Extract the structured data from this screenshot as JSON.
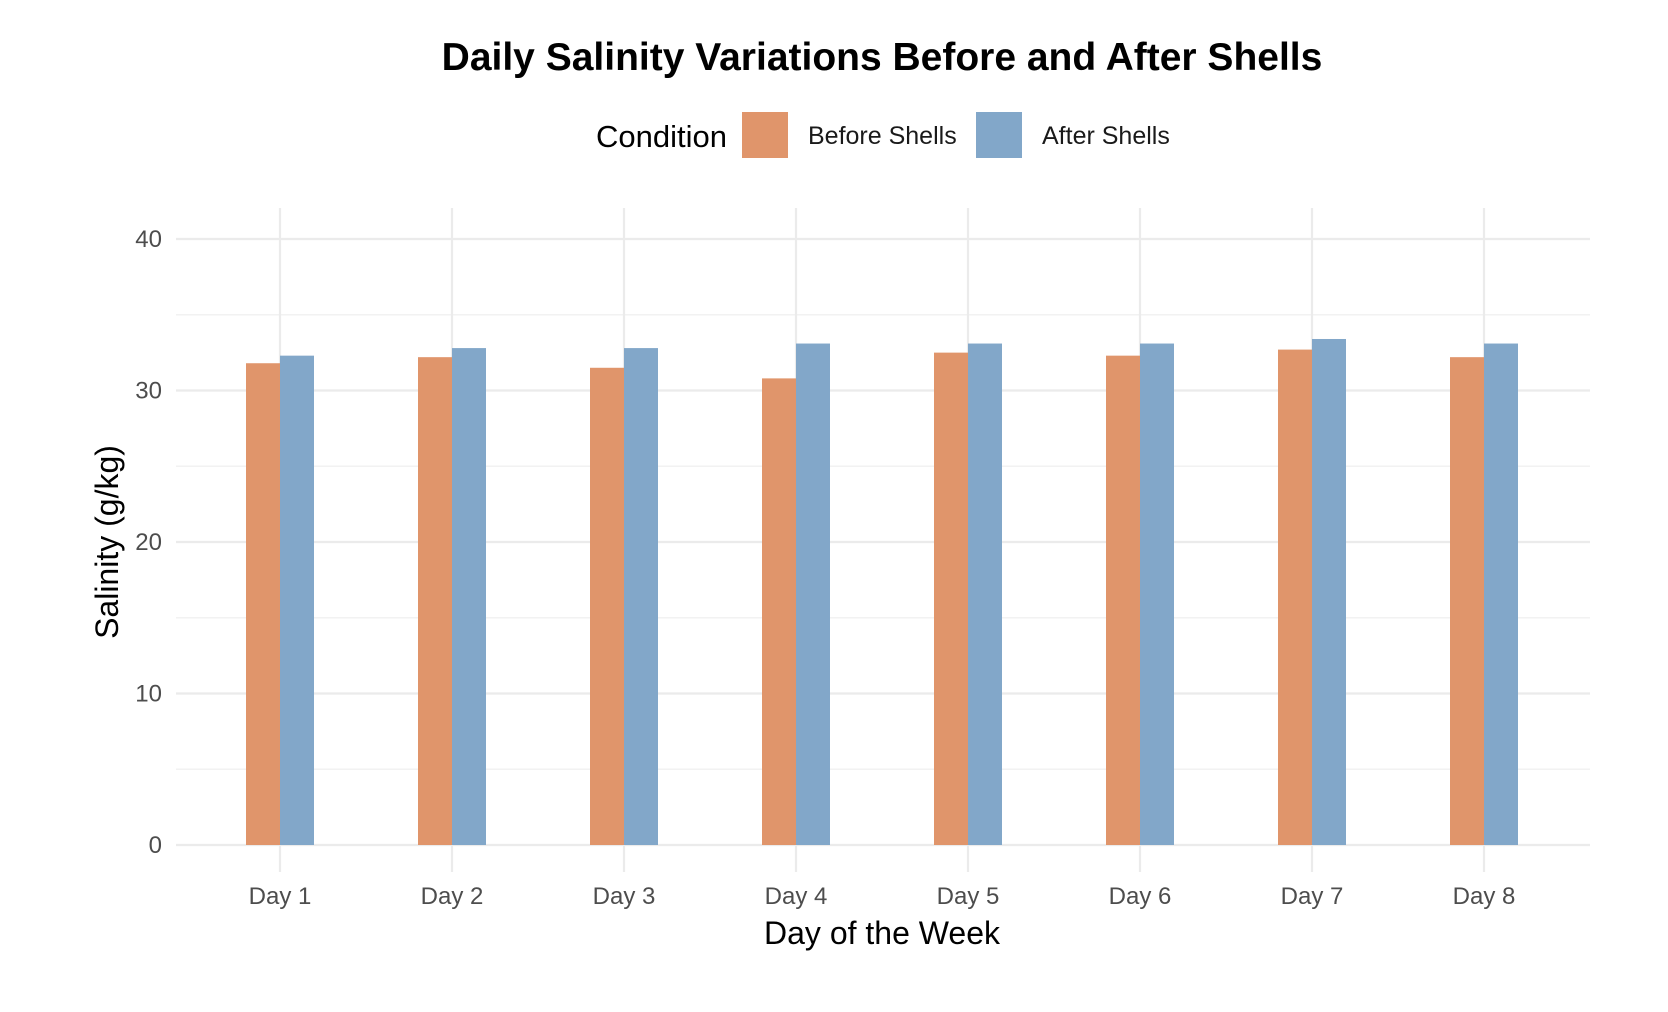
{
  "chart_data": {
    "type": "bar",
    "title": "Daily Salinity Variations Before and After Shells",
    "xlabel": "Day of the Week",
    "ylabel": "Salinity (g/kg)",
    "categories": [
      "Day 1",
      "Day 2",
      "Day 3",
      "Day 4",
      "Day 5",
      "Day 6",
      "Day 7",
      "Day 8"
    ],
    "legend": {
      "title": "Condition",
      "placement": "top"
    },
    "series": [
      {
        "name": "Before Shells",
        "color": "#E0956B",
        "values": [
          31.8,
          32.2,
          31.5,
          30.8,
          32.5,
          32.3,
          32.7,
          32.2
        ]
      },
      {
        "name": "After Shells",
        "color": "#82A7C9",
        "values": [
          32.3,
          32.8,
          32.8,
          33.1,
          33.1,
          33.1,
          33.4,
          33.1
        ]
      }
    ],
    "ylim": [
      0,
      40
    ],
    "yticks": [
      0,
      10,
      20,
      30,
      40
    ],
    "grid": true
  }
}
